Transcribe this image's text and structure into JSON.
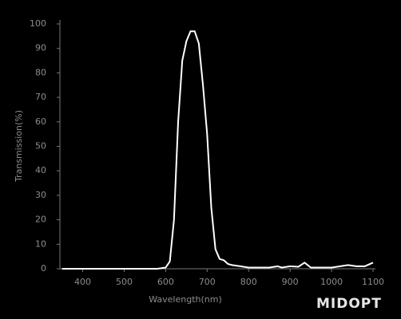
{
  "chart_data": {
    "type": "line",
    "x_label": "Wavelength(nm)",
    "y_label": "Transmission(%)",
    "logo": "MIDOPT",
    "x": [
      350,
      400,
      500,
      580,
      600,
      610,
      620,
      630,
      640,
      650,
      660,
      670,
      680,
      690,
      700,
      710,
      720,
      730,
      740,
      750,
      760,
      780,
      800,
      850,
      870,
      880,
      900,
      920,
      935,
      950,
      1000,
      1040,
      1060,
      1080,
      1100
    ],
    "series": [
      {
        "name": "Transmission",
        "color": "#ffffff",
        "values": [
          0,
          0,
          0,
          0,
          0.5,
          3,
          20,
          60,
          85,
          93,
          97,
          97,
          92,
          75,
          55,
          25,
          8,
          4,
          3.5,
          2,
          1.5,
          1,
          0.5,
          0.5,
          1,
          0.5,
          1,
          0.8,
          2.5,
          0.5,
          0.5,
          1.5,
          1,
          1,
          2.5
        ]
      }
    ],
    "xlim": [
      345,
      1100
    ],
    "ylim": [
      0,
      100
    ],
    "xticks": [
      400,
      500,
      600,
      700,
      800,
      900,
      1000,
      1100
    ],
    "yticks": [
      0,
      10,
      20,
      30,
      40,
      50,
      60,
      70,
      80,
      90,
      100
    ]
  }
}
